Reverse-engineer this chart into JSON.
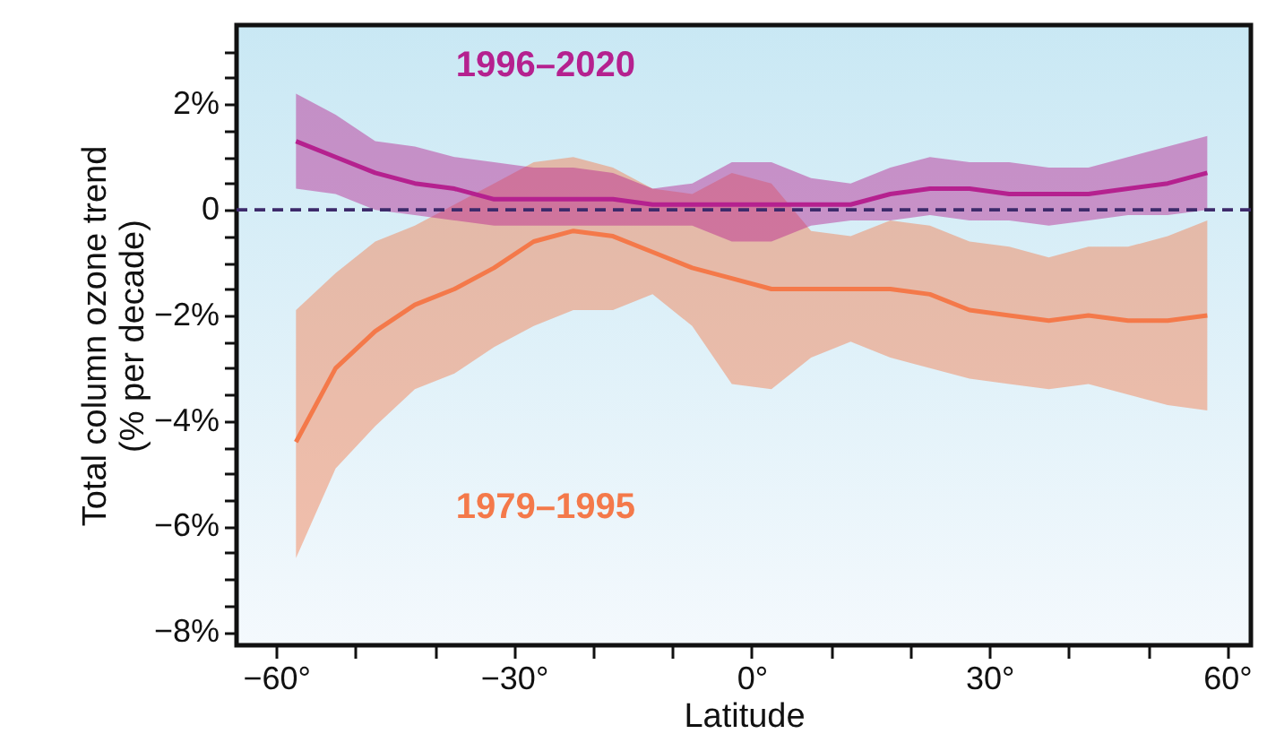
{
  "chart_data": {
    "type": "line",
    "xlabel": "Latitude",
    "ylabel": "Total column ozone trend\n(% per decade)",
    "x": [
      -57.5,
      -52.5,
      -47.5,
      -42.5,
      -37.5,
      -32.5,
      -27.5,
      -22.5,
      -17.5,
      -12.5,
      -7.5,
      -2.5,
      2.5,
      7.5,
      12.5,
      17.5,
      22.5,
      27.5,
      32.5,
      37.5,
      42.5,
      47.5,
      52.5,
      57.5
    ],
    "series": [
      {
        "name": "1979–1995",
        "color": "#f4794a",
        "values": [
          -4.4,
          -3.0,
          -2.3,
          -1.8,
          -1.5,
          -1.1,
          -0.6,
          -0.4,
          -0.5,
          -0.8,
          -1.1,
          -1.3,
          -1.5,
          -1.5,
          -1.5,
          -1.5,
          -1.6,
          -1.9,
          -2.0,
          -2.1,
          -2.0,
          -2.1,
          -2.1,
          -2.0
        ],
        "upper": [
          -1.9,
          -1.2,
          -0.6,
          -0.3,
          0.1,
          0.5,
          0.9,
          1.0,
          0.8,
          0.4,
          0.3,
          0.7,
          0.5,
          -0.4,
          -0.5,
          -0.2,
          -0.3,
          -0.6,
          -0.7,
          -0.9,
          -0.7,
          -0.7,
          -0.5,
          -0.2
        ],
        "lower": [
          -6.6,
          -4.9,
          -4.1,
          -3.4,
          -3.1,
          -2.6,
          -2.2,
          -1.9,
          -1.9,
          -1.6,
          -2.2,
          -3.3,
          -3.4,
          -2.8,
          -2.5,
          -2.8,
          -3.0,
          -3.2,
          -3.3,
          -3.4,
          -3.3,
          -3.5,
          -3.7,
          -3.8
        ]
      },
      {
        "name": "1996–2020",
        "color": "#b5218f",
        "values": [
          1.3,
          1.0,
          0.7,
          0.5,
          0.4,
          0.2,
          0.2,
          0.2,
          0.2,
          0.1,
          0.1,
          0.1,
          0.1,
          0.1,
          0.1,
          0.3,
          0.4,
          0.4,
          0.3,
          0.3,
          0.3,
          0.4,
          0.5,
          0.7
        ],
        "upper": [
          2.2,
          1.8,
          1.3,
          1.2,
          1.0,
          0.9,
          0.8,
          0.8,
          0.7,
          0.4,
          0.5,
          0.9,
          0.9,
          0.6,
          0.5,
          0.8,
          1.0,
          0.9,
          0.9,
          0.8,
          0.8,
          1.0,
          1.2,
          1.4
        ],
        "lower": [
          0.4,
          0.3,
          0.0,
          -0.1,
          -0.2,
          -0.3,
          -0.3,
          -0.3,
          -0.3,
          -0.3,
          -0.3,
          -0.6,
          -0.6,
          -0.3,
          -0.2,
          -0.2,
          -0.1,
          -0.2,
          -0.2,
          -0.3,
          -0.2,
          -0.1,
          -0.1,
          0.0
        ]
      }
    ],
    "xlim": [
      -65,
      63
    ],
    "xticks": [
      {
        "value": -60,
        "label": "−60°"
      },
      {
        "value": -50,
        "label": null
      },
      {
        "value": -40,
        "label": null
      },
      {
        "value": -30,
        "label": "−30°"
      },
      {
        "value": -20,
        "label": null
      },
      {
        "value": -10,
        "label": null
      },
      {
        "value": 0,
        "label": "0°"
      },
      {
        "value": 10,
        "label": null
      },
      {
        "value": 20,
        "label": null
      },
      {
        "value": 30,
        "label": "30°"
      },
      {
        "value": 40,
        "label": null
      },
      {
        "value": 50,
        "label": null
      },
      {
        "value": 60,
        "label": "60°"
      }
    ],
    "ylim": [
      -8.25,
      3.5
    ],
    "yticks": [
      {
        "value": -8,
        "label": "−8%"
      },
      {
        "value": -7.5,
        "label": null
      },
      {
        "value": -7,
        "label": null
      },
      {
        "value": -6.5,
        "label": null
      },
      {
        "value": -6,
        "label": "−6%"
      },
      {
        "value": -5.5,
        "label": null
      },
      {
        "value": -5,
        "label": null
      },
      {
        "value": -4.5,
        "label": null
      },
      {
        "value": -4,
        "label": "−4%"
      },
      {
        "value": -3.5,
        "label": null
      },
      {
        "value": -3,
        "label": null
      },
      {
        "value": -2.5,
        "label": null
      },
      {
        "value": -2,
        "label": "−2%"
      },
      {
        "value": -1.5,
        "label": null
      },
      {
        "value": -1,
        "label": null
      },
      {
        "value": -0.5,
        "label": null
      },
      {
        "value": 0,
        "label": "0"
      },
      {
        "value": 0.5,
        "label": null
      },
      {
        "value": 1,
        "label": null
      },
      {
        "value": 1.5,
        "label": null
      },
      {
        "value": 2,
        "label": "2%"
      },
      {
        "value": 2.5,
        "label": null
      },
      {
        "value": 3,
        "label": null
      }
    ],
    "ref_lines": [
      {
        "axis": "y",
        "value": 0,
        "color": "#3d2a6b",
        "line_style": "dashed"
      }
    ],
    "grid": false,
    "legend": false,
    "marker": "none",
    "line_style": "solid"
  }
}
